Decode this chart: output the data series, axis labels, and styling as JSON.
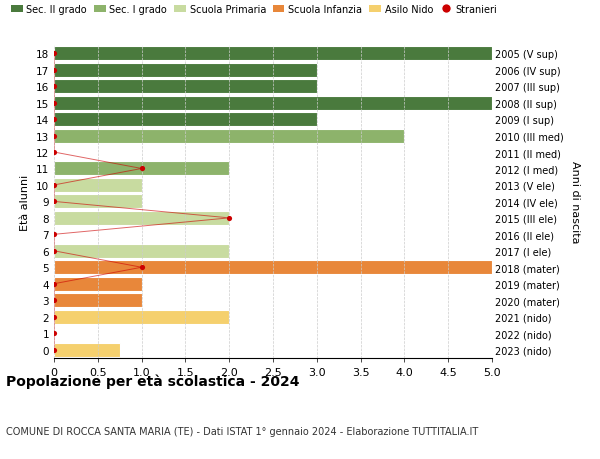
{
  "ages": [
    0,
    1,
    2,
    3,
    4,
    5,
    6,
    7,
    8,
    9,
    10,
    11,
    12,
    13,
    14,
    15,
    16,
    17,
    18
  ],
  "right_labels": [
    "2023 (nido)",
    "2022 (nido)",
    "2021 (nido)",
    "2020 (mater)",
    "2019 (mater)",
    "2018 (mater)",
    "2017 (I ele)",
    "2016 (II ele)",
    "2015 (III ele)",
    "2014 (IV ele)",
    "2013 (V ele)",
    "2012 (I med)",
    "2011 (II med)",
    "2010 (III med)",
    "2009 (I sup)",
    "2008 (II sup)",
    "2007 (III sup)",
    "2006 (IV sup)",
    "2005 (V sup)"
  ],
  "bar_values": [
    0.75,
    0,
    2.0,
    1.0,
    1.0,
    5.0,
    2.0,
    0,
    2.0,
    1.0,
    1.0,
    2.0,
    0,
    4.0,
    3.0,
    5.0,
    3.0,
    3.0,
    5.0
  ],
  "bar_colors": [
    "#f5d06e",
    "#f5d06e",
    "#f5d06e",
    "#e8873a",
    "#e8873a",
    "#e8873a",
    "#c8dba0",
    "#c8dba0",
    "#c8dba0",
    "#c8dba0",
    "#c8dba0",
    "#8db36b",
    "#8db36b",
    "#8db36b",
    "#4a7a3d",
    "#4a7a3d",
    "#4a7a3d",
    "#4a7a3d",
    "#4a7a3d"
  ],
  "stranieri_x": [
    0,
    0,
    0,
    0,
    0,
    1.0,
    0,
    0,
    2.0,
    0,
    0,
    1.0,
    0,
    0,
    0,
    0,
    0,
    0,
    0
  ],
  "xlim": [
    0,
    5.0
  ],
  "xlabel_ticks": [
    0,
    0.5,
    1.0,
    1.5,
    2.0,
    2.5,
    3.0,
    3.5,
    4.0,
    4.5,
    5.0
  ],
  "xlabel_labels": [
    "0",
    "0.5",
    "1.0",
    "1.5",
    "2.0",
    "2.5",
    "3.0",
    "3.5",
    "4.0",
    "4.5",
    "5.0"
  ],
  "ylabel_left": "Età alunni",
  "ylabel_right": "Anni di nascita",
  "title": "Popolazione per età scolastica - 2024",
  "subtitle": "COMUNE DI ROCCA SANTA MARIA (TE) - Dati ISTAT 1° gennaio 2024 - Elaborazione TUTTITALIA.IT",
  "legend_labels": [
    "Sec. II grado",
    "Sec. I grado",
    "Scuola Primaria",
    "Scuola Infanzia",
    "Asilo Nido",
    "Stranieri"
  ],
  "legend_colors": [
    "#4a7a3d",
    "#8db36b",
    "#c8dba0",
    "#e8873a",
    "#f5d06e",
    "#cc0000"
  ],
  "background_color": "#ffffff",
  "grid_color": "#cccccc",
  "bar_height": 0.85
}
